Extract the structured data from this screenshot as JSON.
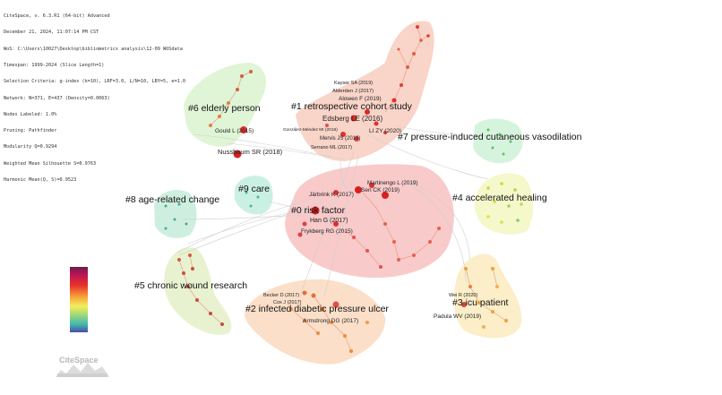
{
  "header_info": [
    "CiteSpace, v. 6.3.R1 (64-bit) Advanced",
    "December 21, 2024, 11:07:14 PM CST",
    "WoS: C:\\Users\\10027\\Desktop\\bibliometrics analysis\\12-09 WOSdata",
    "Timespan: 1999-2024 (Slice Length=1)",
    "Selection Criteria: g-index (k=10), LRF=3.0, L/N=10, LBY=5, e=1.0",
    "Network: N=371, E=437 (Density=0.0063)",
    "Nodes Labeled: 1.0%",
    "Pruning: Pathfinder",
    "Modularity Q=0.9294",
    "Weighted Mean Silhouette S=0.9763",
    "Harmonic Mean(Q, S)=0.9523"
  ],
  "logo_text": "CiteSpace",
  "colors": {
    "cluster0": "#f9c9c9",
    "cluster1": "#f9d4c8",
    "cluster2": "#fbe0c8",
    "cluster3": "#fbeec6",
    "cluster4": "#f4f8c6",
    "cluster5": "#eaf3cf",
    "cluster6": "#e0f6d8",
    "cluster7": "#d7f5de",
    "cluster8": "#cdefe0",
    "cluster9": "#c7f0e4",
    "node_red": "#e02828",
    "node_orange": "#ef8a3a"
  },
  "clusters": [
    {
      "label": "#0 risk factor"
    },
    {
      "label": "#1 retrospective cohort study"
    },
    {
      "label": "#2 infected diabetic pressure ulcer"
    },
    {
      "label": "#3 icu patient"
    },
    {
      "label": "#4 accelerated healing"
    },
    {
      "label": "#5 chronic wound research"
    },
    {
      "label": "#6 elderly person"
    },
    {
      "label": "#7 pressure-induced cutaneous vasodilation"
    },
    {
      "label": "#8 age-related change"
    },
    {
      "label": "#9 care"
    }
  ],
  "references": [
    "Kayser SA (2019)",
    "Alderden J (2017)",
    "Alowen F (2019)",
    "Edsberg LE (2016)",
    "González-Méndez MI (2018)",
    "LI ZY (2020)",
    "Mervis JS (2019)",
    "Serrano ML (2017)",
    "Gould L (2015)",
    "Nussbaum SR (2018)",
    "Martinengo L (2019)",
    "Järbrink K (2017)",
    "Sen CK (2019)",
    "Han G (2017)",
    "Frykberg RG (2015)",
    "Becker D (2017)",
    "Cox J (2017)",
    "Armstrong DG (2017)",
    "Wei R (2020)",
    "Padula WV (2019)"
  ]
}
